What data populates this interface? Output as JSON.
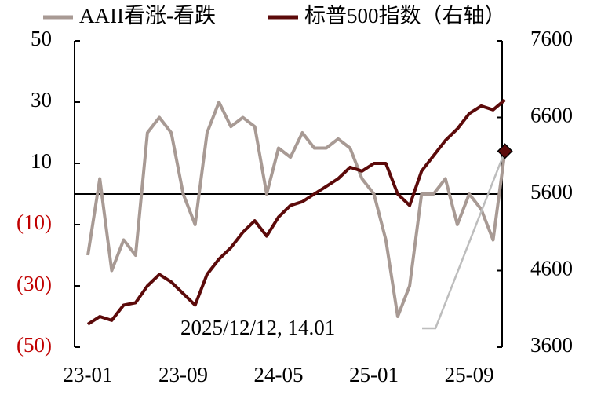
{
  "chart_data": {
    "type": "line",
    "legend": "top",
    "categories": [
      "23-01",
      null,
      null,
      null,
      null,
      null,
      null,
      null,
      "23-09",
      null,
      null,
      null,
      null,
      null,
      null,
      null,
      "24-05",
      null,
      null,
      null,
      null,
      null,
      null,
      null,
      "25-01",
      null,
      null,
      null,
      null,
      null,
      null,
      null,
      "25-09",
      null,
      null,
      null
    ],
    "series": [
      {
        "name": "AAII看涨-看跌",
        "color": "#a89a94",
        "values": [
          -20,
          5,
          -25,
          -15,
          -20,
          20,
          25,
          20,
          0,
          -10,
          20,
          30,
          22,
          25,
          22,
          0,
          15,
          12,
          20,
          15,
          15,
          18,
          15,
          5,
          0,
          -15,
          -40,
          -30,
          0,
          0,
          5,
          -10,
          0,
          -5,
          -15,
          14.01
        ]
      },
      {
        "name": "标普500指数（右轴）",
        "color": "#5c0a0a",
        "axis": "y2",
        "values": [
          3900,
          4000,
          3950,
          4150,
          4180,
          4400,
          4550,
          4450,
          4300,
          4150,
          4550,
          4750,
          4900,
          5100,
          5250,
          5050,
          5300,
          5450,
          5500,
          5600,
          5700,
          5800,
          5950,
          5900,
          6000,
          6000,
          5600,
          5450,
          5900,
          6100,
          6300,
          6450,
          6650,
          6750,
          6700,
          6830
        ]
      }
    ],
    "ylim": [
      -50,
      50
    ],
    "yticks": [
      {
        "value": -50,
        "label": "(50)"
      },
      {
        "value": -30,
        "label": "(30)"
      },
      {
        "value": -10,
        "label": "(10)"
      },
      10,
      30,
      50
    ],
    "negative_tick_color": "#c00000",
    "y2lim": [
      3600,
      7600
    ],
    "y2ticks": [
      3600,
      4600,
      5600,
      6600,
      7600
    ],
    "hline": 0,
    "annotation": {
      "text": "2025/12/12, 14.01",
      "series": 0,
      "index": 35,
      "marker_color": "#5c0a0a"
    }
  }
}
